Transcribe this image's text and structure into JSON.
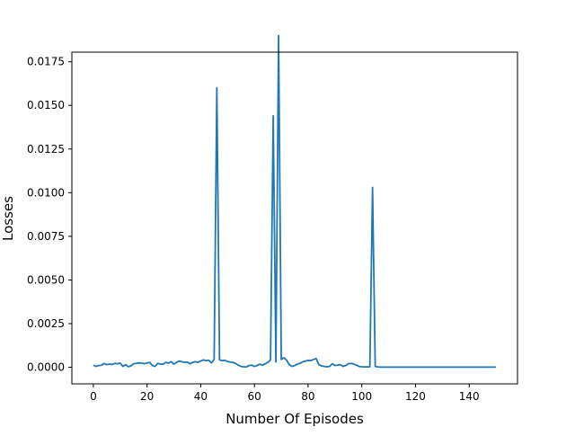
{
  "chart_data": {
    "type": "line",
    "title": "",
    "xlabel": "Number Of Episodes",
    "ylabel": "Losses",
    "xlim": [
      -8,
      158
    ],
    "ylim": [
      -0.00095,
      0.01805
    ],
    "grid": false,
    "x_ticks": [
      0,
      20,
      40,
      60,
      80,
      100,
      120,
      140
    ],
    "x_tick_labels": [
      "0",
      "20",
      "40",
      "60",
      "80",
      "100",
      "120",
      "140"
    ],
    "y_ticks": [
      0.0,
      0.0025,
      0.005,
      0.0075,
      0.01,
      0.0125,
      0.015,
      0.0175
    ],
    "y_tick_labels": [
      "0.0000",
      "0.0025",
      "0.0050",
      "0.0075",
      "0.0100",
      "0.0125",
      "0.0150",
      "0.0175"
    ],
    "line_color": "#1f77b4",
    "series": [
      {
        "name": "",
        "x": [
          0,
          1,
          2,
          3,
          4,
          5,
          6,
          7,
          8,
          9,
          10,
          11,
          12,
          13,
          14,
          15,
          16,
          17,
          18,
          19,
          20,
          21,
          22,
          23,
          24,
          25,
          26,
          27,
          28,
          29,
          30,
          31,
          32,
          33,
          34,
          35,
          36,
          37,
          38,
          39,
          40,
          41,
          42,
          43,
          44,
          45,
          46,
          47,
          48,
          49,
          50,
          51,
          52,
          53,
          54,
          55,
          56,
          57,
          58,
          59,
          60,
          61,
          62,
          63,
          64,
          65,
          66,
          67,
          68,
          69,
          70,
          71,
          72,
          73,
          74,
          75,
          76,
          77,
          78,
          79,
          80,
          81,
          82,
          83,
          84,
          85,
          86,
          87,
          88,
          89,
          90,
          91,
          92,
          93,
          94,
          95,
          96,
          97,
          98,
          99,
          100,
          101,
          102,
          103,
          104,
          105,
          106,
          107,
          108,
          109,
          110,
          111,
          112,
          113,
          114,
          115,
          116,
          117,
          118,
          119,
          120,
          121,
          122,
          123,
          124,
          125,
          126,
          127,
          128,
          129,
          130,
          131,
          132,
          133,
          134,
          135,
          136,
          137,
          138,
          139,
          140,
          141,
          142,
          143,
          144,
          145,
          146,
          147,
          148,
          149,
          150
        ],
        "y": [
          0.00012,
          5e-05,
          0.0001,
          0.00012,
          0.00022,
          0.00015,
          0.00018,
          0.00016,
          0.00022,
          0.0002,
          0.00024,
          5e-05,
          0.00015,
          3e-05,
          8e-05,
          0.0002,
          0.00022,
          0.00025,
          0.00024,
          0.0002,
          0.00024,
          0.00028,
          0.0001,
          5e-05,
          0.00022,
          0.00018,
          0.00018,
          0.00028,
          0.00024,
          0.00032,
          0.00018,
          0.00028,
          0.00035,
          0.00032,
          0.00028,
          0.0003,
          0.0002,
          0.00028,
          0.00032,
          0.00028,
          0.00036,
          0.00042,
          0.00038,
          0.0004,
          0.00025,
          0.00045,
          0.016,
          0.00042,
          0.00038,
          0.0004,
          0.00033,
          0.0003,
          0.00028,
          0.00022,
          0.00012,
          5e-05,
          3e-05,
          2e-05,
          0.0001,
          0.00012,
          5e-05,
          0.0001,
          0.00018,
          0.00012,
          0.0002,
          0.00028,
          0.00042,
          0.0144,
          0.0003,
          0.019,
          0.00045,
          0.00055,
          0.0004,
          0.00015,
          5e-05,
          0.0001,
          0.00018,
          0.00022,
          0.00032,
          0.00035,
          0.0004,
          0.00038,
          0.00045,
          0.0005,
          0.00015,
          8e-05,
          5e-05,
          3e-05,
          5e-05,
          0.0002,
          0.0001,
          0.00012,
          0.00015,
          5e-05,
          0.0001,
          0.0002,
          0.00022,
          0.00018,
          0.00012,
          5e-05,
          3e-05,
          2e-05,
          2e-05,
          2e-05,
          0.0103,
          5e-05,
          2e-05,
          1e-05,
          1e-05,
          1e-05,
          1e-05,
          1e-05,
          1e-05,
          1e-05,
          1e-05,
          1e-05,
          1e-05,
          1e-05,
          1e-05,
          1e-05,
          1e-05,
          1e-05,
          1e-05,
          1e-05,
          1e-05,
          1e-05,
          1e-05,
          1e-05,
          1e-05,
          1e-05,
          1e-05,
          1e-05,
          1e-05,
          1e-05,
          1e-05,
          1e-05,
          1e-05,
          1e-05,
          1e-05,
          1e-05,
          1e-05,
          1e-05,
          1e-05,
          1e-05,
          1e-05,
          1e-05,
          1e-05,
          1e-05,
          1e-05,
          1e-05,
          1e-05
        ]
      }
    ]
  }
}
